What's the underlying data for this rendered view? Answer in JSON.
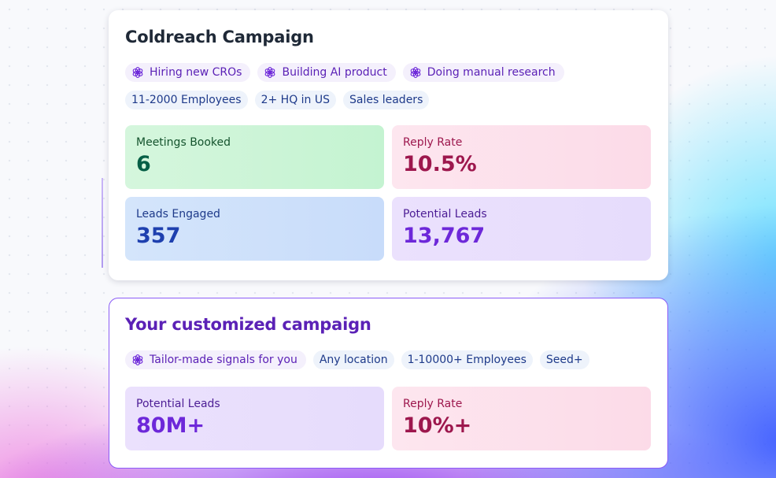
{
  "campaign": {
    "title": "Coldreach Campaign",
    "signals": [
      "Hiring new CROs",
      "Building AI product",
      "Doing manual research"
    ],
    "filters": [
      "11-2000 Employees",
      "2+ HQ in US",
      "Sales leaders"
    ],
    "stats": [
      {
        "label": "Meetings Booked",
        "value": "6"
      },
      {
        "label": "Reply Rate",
        "value": "10.5%"
      },
      {
        "label": "Leads Engaged",
        "value": "357"
      },
      {
        "label": "Potential Leads",
        "value": "13,767"
      }
    ]
  },
  "custom": {
    "title": "Your customized campaign",
    "signals": [
      "Tailor-made signals for you"
    ],
    "filters": [
      "Any location",
      "1-10000+ Employees",
      "Seed+"
    ],
    "stats": [
      {
        "label": "Potential Leads",
        "value": "80M+"
      },
      {
        "label": "Reply Rate",
        "value": "10%+"
      }
    ]
  }
}
